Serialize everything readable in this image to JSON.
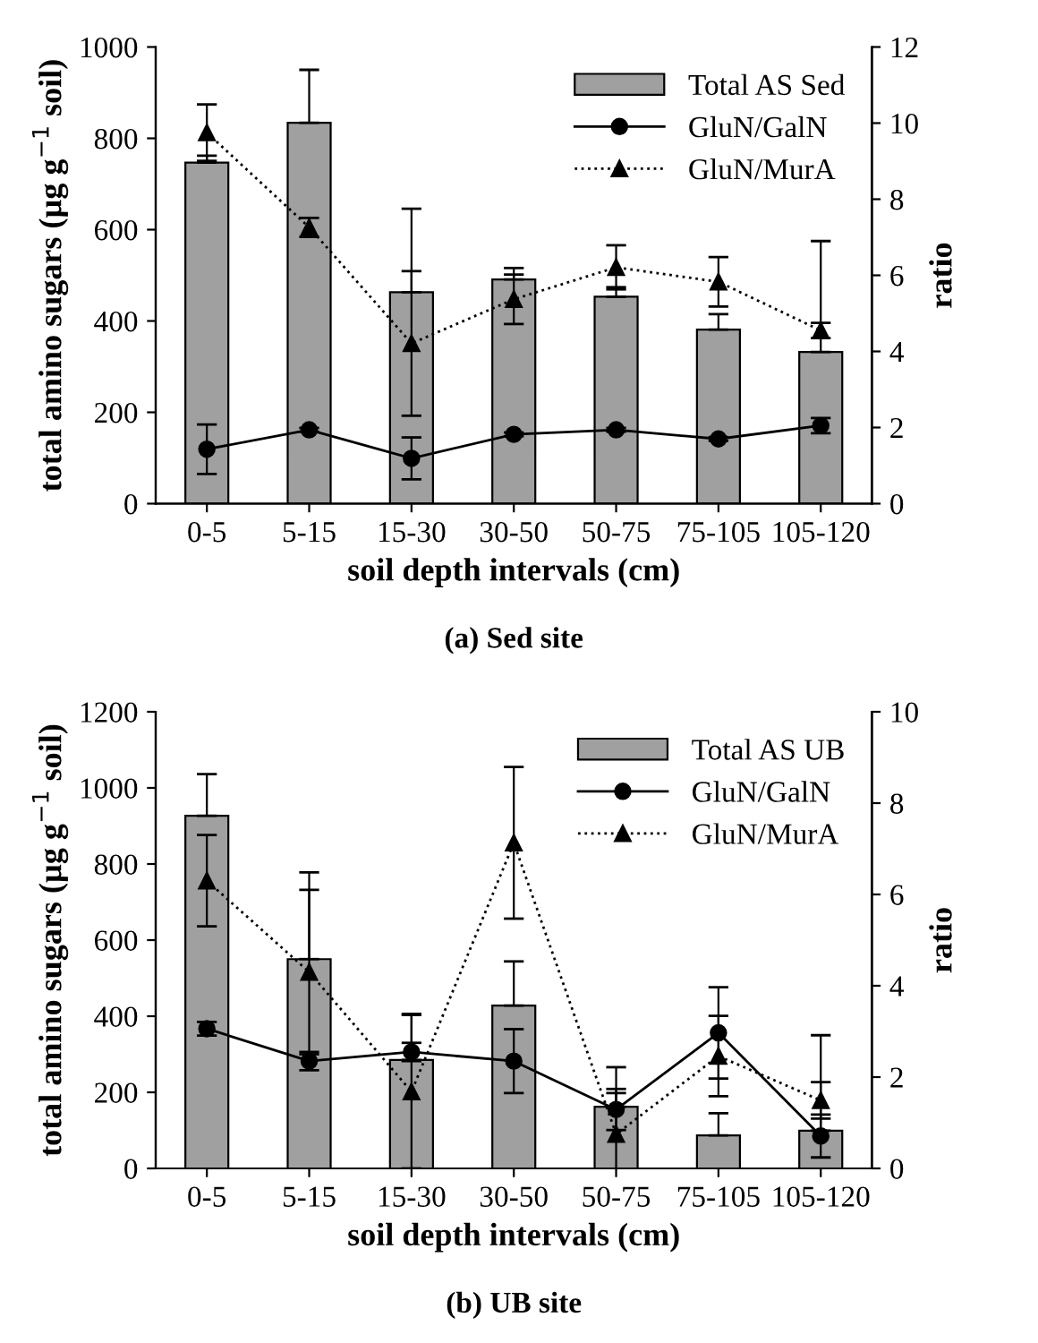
{
  "chart_data": [
    {
      "type": "bar",
      "xlabel": "soil depth intervals (cm)",
      "ylabel": "total amino sugars (µg g$^{−1}$ soil)",
      "y2label": "ratio",
      "categories": [
        "0-5",
        "5-15",
        "15-30",
        "30-50",
        "50-75",
        "75-105",
        "105-120"
      ],
      "ylim": [
        0,
        1000
      ],
      "yticks": [
        0,
        200,
        400,
        600,
        800,
        1000
      ],
      "y2lim": [
        0,
        12
      ],
      "y2ticks": [
        0,
        2,
        4,
        6,
        8,
        10,
        12
      ],
      "legend": "top right",
      "grid": false,
      "annotations": [
        "(a) Sed site"
      ],
      "series": [
        {
          "name": "Total AS Sed",
          "color": "#a0a0a0",
          "values": [
            747,
            834,
            463,
            491,
            453,
            381,
            332
          ],
          "errors": [
            [
              747,
              762
            ],
            [
              834,
              950
            ],
            [
              463,
              646
            ],
            [
              491,
              516
            ],
            [
              453,
              474
            ],
            [
              381,
              415
            ],
            [
              332,
              575
            ]
          ]
        },
        {
          "name": "GluN/GalN",
          "type": "line",
          "axis": "y2",
          "color": "#000000",
          "marker": "circle",
          "line_style": "solid",
          "values": [
            1.43,
            1.94,
            1.19,
            1.82,
            1.94,
            1.7,
            2.05
          ],
          "errors": [
            0.65,
            0.05,
            0.55,
            0.05,
            0.05,
            0.05,
            0.2
          ]
        },
        {
          "name": "GluN/MurA",
          "type": "line",
          "axis": "y2",
          "color": "#000000",
          "marker": "triangle",
          "line_style": "dotted",
          "values": [
            9.75,
            7.26,
            4.21,
            5.37,
            6.21,
            5.83,
            4.55
          ],
          "errors": [
            0.74,
            0.25,
            1.9,
            0.65,
            0.58,
            0.65,
            0.2
          ]
        }
      ]
    },
    {
      "type": "bar",
      "xlabel": "soil depth intervals (cm)",
      "ylabel": "total amino sugars (µg g$^{−1}$ soil)",
      "y2label": "ratio",
      "categories": [
        "0-5",
        "5-15",
        "15-30",
        "30-50",
        "50-75",
        "75-105",
        "105-120"
      ],
      "ylim": [
        0,
        1200
      ],
      "yticks": [
        0,
        200,
        400,
        600,
        800,
        1000,
        1200
      ],
      "y2lim": [
        0,
        10
      ],
      "y2ticks": [
        0,
        2,
        4,
        6,
        8,
        10
      ],
      "legend": "top right",
      "grid": false,
      "annotations": [
        "(b) UB site"
      ],
      "series": [
        {
          "name": "Total AS UB",
          "color": "#a0a0a0",
          "values": [
            927,
            550,
            285,
            428,
            162,
            87,
            99
          ],
          "errors": [
            [
              927,
              1036
            ],
            [
              550,
              778
            ],
            [
              285,
              406
            ],
            [
              428,
              544
            ],
            [
              162,
              266
            ],
            [
              87,
              145
            ],
            [
              99,
              350
            ]
          ]
        },
        {
          "name": "GluN/GalN",
          "type": "line",
          "axis": "y2",
          "color": "#000000",
          "marker": "circle",
          "line_style": "solid",
          "values": [
            3.06,
            2.35,
            2.55,
            2.35,
            1.29,
            2.97,
            0.71
          ],
          "errors": [
            0.15,
            0.2,
            0.2,
            0.7,
            0.45,
            1.0,
            0.47
          ]
        },
        {
          "name": "GluN/MurA",
          "type": "line",
          "axis": "y2",
          "color": "#000000",
          "marker": "triangle",
          "line_style": "dotted",
          "values": [
            6.3,
            4.3,
            1.68,
            7.13,
            0.75,
            2.46,
            1.49
          ],
          "errors": [
            1.0,
            1.8,
            1.68,
            1.66,
            0.9,
            0.88,
            0.4
          ]
        }
      ]
    }
  ]
}
